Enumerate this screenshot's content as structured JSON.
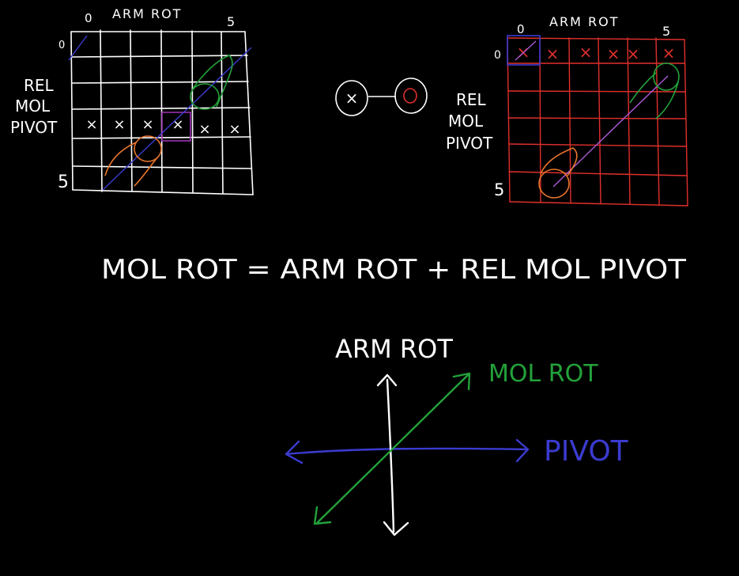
{
  "left_grid": {
    "top_label": "ARM ROT",
    "top_tick_start": "0",
    "top_tick_end": "5",
    "side_label_lines": [
      "REL",
      "MOL",
      "PIVOT"
    ],
    "side_tick_start": "0",
    "side_tick_end": "5",
    "x_mark": "×"
  },
  "middle_icons": {
    "x_mark": "×"
  },
  "right_grid": {
    "top_label": "ARM ROT",
    "top_tick_start": "0",
    "top_tick_end": "5",
    "side_label_lines": [
      "REL",
      "MOL",
      "PIVOT"
    ],
    "side_tick_start": "0",
    "side_tick_end": "5",
    "x_mark": "×"
  },
  "equation": "MOL ROT = ARM ROT + REL MOL PIVOT",
  "axes": {
    "vertical_label": "ARM ROT",
    "diagonal_label": "MOL ROT",
    "horizontal_label": "PIVOT"
  },
  "colors": {
    "white": "#ffffff",
    "red": "#e0302c",
    "blue": "#3b3bd0",
    "green": "#23a23a",
    "orange": "#e8752d",
    "purple": "#9b2fb0",
    "violet": "#b05ad8"
  }
}
